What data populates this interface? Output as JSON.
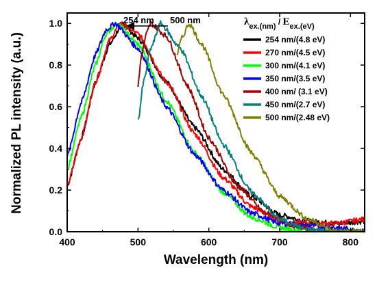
{
  "chart_data": {
    "type": "line",
    "xlabel": "Wavelength (nm)",
    "ylabel": "Normalized PL intensity (a.u.)",
    "xlim": [
      400,
      820
    ],
    "ylim": [
      0.0,
      1.05
    ],
    "xticks": [
      "400",
      "500",
      "600",
      "700",
      "800"
    ],
    "yticks": [
      "0.0",
      "0.2",
      "0.4",
      "0.6",
      "0.8",
      "1.0"
    ],
    "legend_title": {
      "lambda_sym": "λ",
      "lambda_sub": "ex.(nm)",
      "sep": " / ",
      "e_sym": "E",
      "e_sub": "ex.(eV)"
    },
    "legend_position": "top-right",
    "annotations": {
      "left": "254 nm",
      "right": "500 nm"
    },
    "series": [
      {
        "name": "254 nm/(4.8 eV)",
        "color": "#000000",
        "peak": 478,
        "start": 400,
        "points": [
          [
            400,
            0.22
          ],
          [
            420,
            0.45
          ],
          [
            440,
            0.72
          ],
          [
            460,
            0.9
          ],
          [
            478,
            1.0
          ],
          [
            500,
            0.93
          ],
          [
            540,
            0.72
          ],
          [
            580,
            0.5
          ],
          [
            620,
            0.3
          ],
          [
            660,
            0.17
          ],
          [
            700,
            0.08
          ],
          [
            740,
            0.05
          ],
          [
            780,
            0.04
          ],
          [
            820,
            0.05
          ]
        ]
      },
      {
        "name": "270 nm/(4.5 eV)",
        "color": "#ff0000",
        "peak": 475,
        "start": 400,
        "points": [
          [
            400,
            0.22
          ],
          [
            420,
            0.45
          ],
          [
            440,
            0.72
          ],
          [
            460,
            0.92
          ],
          [
            475,
            1.0
          ],
          [
            500,
            0.95
          ],
          [
            540,
            0.72
          ],
          [
            580,
            0.47
          ],
          [
            620,
            0.26
          ],
          [
            660,
            0.12
          ],
          [
            700,
            0.05
          ],
          [
            740,
            0.04
          ],
          [
            780,
            0.04
          ],
          [
            820,
            0.06
          ]
        ]
      },
      {
        "name": "300 nm/(4.1 eV)",
        "color": "#00ff00",
        "peak": 470,
        "start": 400,
        "points": [
          [
            400,
            0.3
          ],
          [
            420,
            0.55
          ],
          [
            440,
            0.8
          ],
          [
            455,
            0.95
          ],
          [
            470,
            1.0
          ],
          [
            500,
            0.9
          ],
          [
            540,
            0.63
          ],
          [
            580,
            0.38
          ],
          [
            620,
            0.19
          ],
          [
            660,
            0.07
          ],
          [
            700,
            0.02
          ],
          [
            740,
            0.0
          ],
          [
            780,
            0.0
          ],
          [
            820,
            0.0
          ]
        ]
      },
      {
        "name": "350 nm/(3.5 eV)",
        "color": "#0000ff",
        "peak": 468,
        "start": 400,
        "points": [
          [
            400,
            0.36
          ],
          [
            420,
            0.62
          ],
          [
            440,
            0.85
          ],
          [
            455,
            0.97
          ],
          [
            468,
            1.0
          ],
          [
            500,
            0.88
          ],
          [
            540,
            0.6
          ],
          [
            580,
            0.37
          ],
          [
            620,
            0.2
          ],
          [
            660,
            0.09
          ],
          [
            700,
            0.04
          ],
          [
            740,
            0.03
          ],
          [
            780,
            0.02
          ],
          [
            820,
            0.0
          ]
        ]
      },
      {
        "name": "400 nm/ (3.1 eV)",
        "color": "#a00000",
        "peak": 518,
        "start": 500,
        "points": [
          [
            500,
            0.7
          ],
          [
            505,
            0.85
          ],
          [
            512,
            0.95
          ],
          [
            518,
            1.0
          ],
          [
            540,
            0.94
          ],
          [
            570,
            0.7
          ],
          [
            600,
            0.45
          ],
          [
            640,
            0.22
          ],
          [
            680,
            0.09
          ],
          [
            720,
            0.03
          ],
          [
            760,
            0.0
          ],
          [
            820,
            0.0
          ]
        ]
      },
      {
        "name": "450 nm/(2.7 eV)",
        "color": "#007f7f",
        "peak": 532,
        "start": 500,
        "points": [
          [
            500,
            0.53
          ],
          [
            508,
            0.72
          ],
          [
            518,
            0.88
          ],
          [
            532,
            1.0
          ],
          [
            560,
            0.88
          ],
          [
            590,
            0.65
          ],
          [
            620,
            0.42
          ],
          [
            660,
            0.19
          ],
          [
            700,
            0.06
          ],
          [
            740,
            0.01
          ],
          [
            780,
            0.0
          ],
          [
            820,
            0.0
          ]
        ]
      },
      {
        "name": "500 nm/(2.48 eV)",
        "color": "#808000",
        "peak": 572,
        "start": 555,
        "points": [
          [
            555,
            0.85
          ],
          [
            562,
            0.93
          ],
          [
            572,
            1.0
          ],
          [
            590,
            0.9
          ],
          [
            620,
            0.66
          ],
          [
            660,
            0.38
          ],
          [
            700,
            0.17
          ],
          [
            740,
            0.06
          ],
          [
            780,
            0.0
          ],
          [
            820,
            0.0
          ]
        ]
      }
    ]
  }
}
